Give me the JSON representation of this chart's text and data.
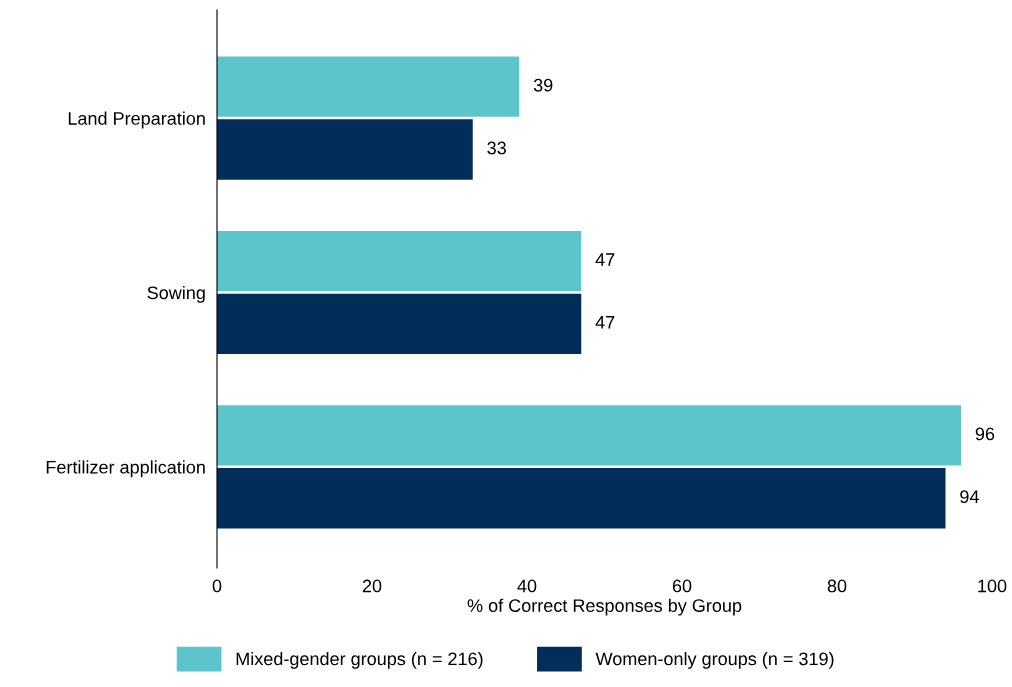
{
  "chart_data": {
    "type": "bar",
    "orientation": "horizontal",
    "xlabel": "% of Correct Responses by Group",
    "categories": [
      "Land Preparation",
      "Sowing",
      "Fertilizer application"
    ],
    "series": [
      {
        "name": "Mixed-gender groups (n = 216)",
        "color": "#5bc5cb",
        "values": [
          39,
          47,
          96
        ]
      },
      {
        "name": "Women-only groups (n = 319)",
        "color": "#002d5a",
        "values": [
          33,
          47,
          94
        ]
      }
    ],
    "xlim": [
      0,
      100
    ],
    "xticks": [
      0,
      20,
      40,
      60,
      80,
      100
    ],
    "data_labels": true,
    "grid": false,
    "legend": "bottom"
  }
}
